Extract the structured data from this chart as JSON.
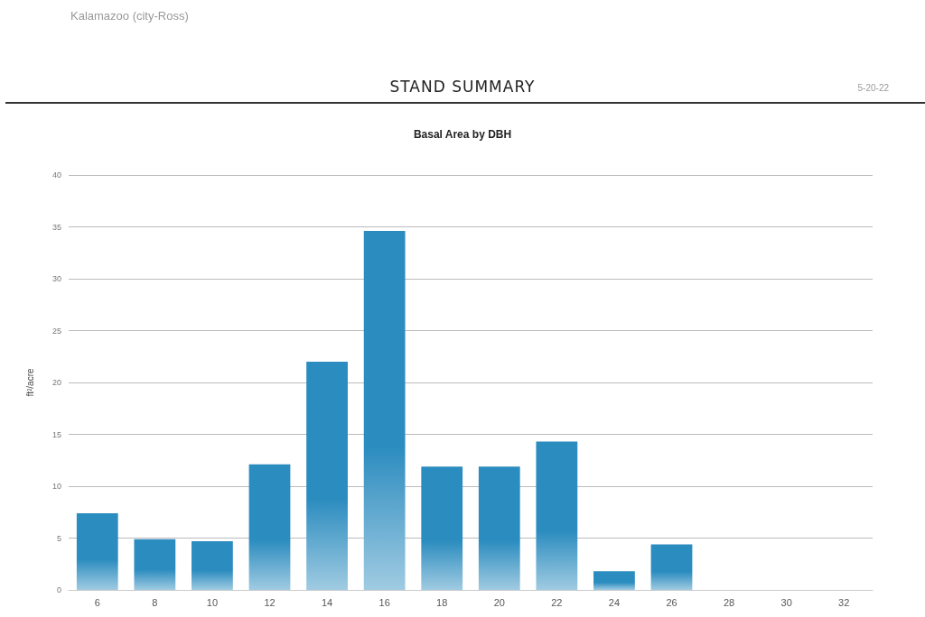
{
  "chart_data": {
    "type": "bar",
    "title": "Basal Area by DBH",
    "ylabel": "ft²/acre",
    "annotations": [
      "Kalamazoo (city-Ross)",
      "STAND SUMMARY",
      "5-20-22"
    ],
    "categories": [
      "6",
      "8",
      "10",
      "12",
      "14",
      "16",
      "18",
      "20",
      "22",
      "24",
      "26",
      "28",
      "30",
      "32"
    ],
    "values": [
      7.4,
      4.9,
      4.7,
      12.1,
      22,
      34.6,
      11.9,
      11.9,
      14.3,
      1.8,
      4.4,
      0,
      0,
      0
    ],
    "color": "#2b8cbf",
    "ylim": [
      0,
      40
    ],
    "yticks": [
      0,
      5,
      10,
      15,
      20,
      25,
      30,
      35,
      40
    ],
    "grid": "y"
  }
}
